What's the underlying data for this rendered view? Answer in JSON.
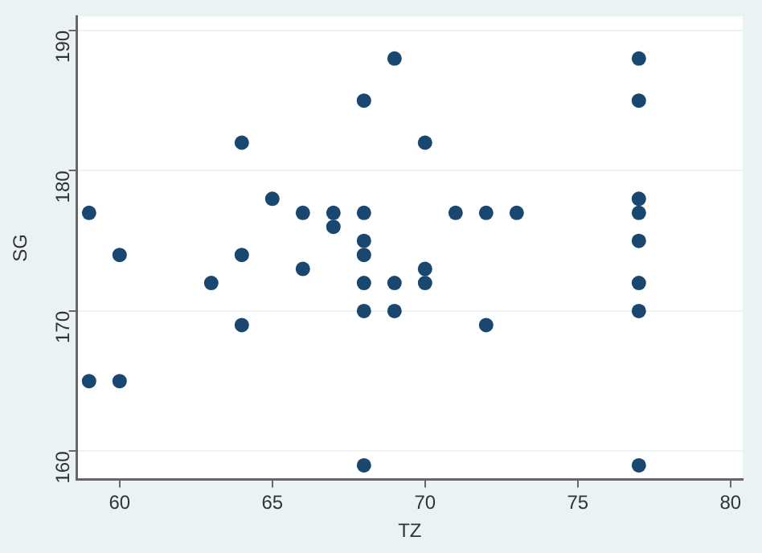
{
  "chart_data": {
    "type": "scatter",
    "xlabel": "TZ",
    "ylabel": "SG",
    "x": [
      59,
      59,
      60,
      60,
      63,
      64,
      64,
      64,
      65,
      66,
      66,
      67,
      67,
      68,
      68,
      68,
      68,
      68,
      68,
      68,
      69,
      69,
      69,
      70,
      70,
      70,
      71,
      72,
      72,
      73,
      77,
      77,
      77,
      77,
      77,
      77,
      77,
      77
    ],
    "series": [
      {
        "color": "#1a476f",
        "values": [
          177,
          165,
          174,
          165,
          172,
          182,
          174,
          169,
          178,
          177,
          173,
          177,
          176,
          185,
          177,
          175,
          174,
          172,
          170,
          159,
          188,
          172,
          170,
          182,
          173,
          172,
          177,
          177,
          169,
          177,
          188,
          185,
          178,
          177,
          175,
          172,
          170,
          159
        ]
      }
    ],
    "xlim": [
      58.6,
      80.4
    ],
    "ylim": [
      158,
      191
    ],
    "xticks": [
      60,
      65,
      70,
      75,
      80
    ],
    "yticks": [
      160,
      170,
      180,
      190
    ],
    "grid": "y",
    "marker": "circle",
    "legend": false
  }
}
